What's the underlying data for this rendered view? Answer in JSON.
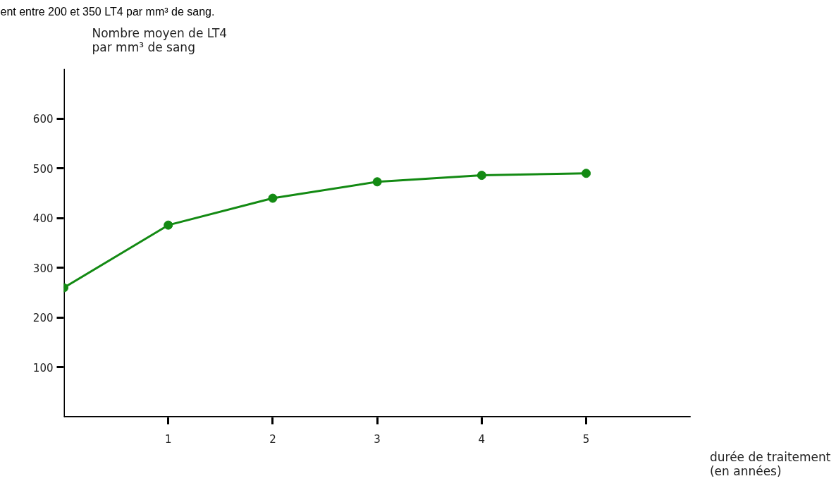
{
  "chart_data": {
    "type": "line",
    "xlabel": "durée de traitement\n(en années)",
    "ylabel": "Nombre moyen de LT4\npar mm³ de sang",
    "annotations": [
      "ent entre 200 et 350 LT4 par mm³ de sang."
    ],
    "x": [
      0,
      1,
      2,
      3,
      4,
      5
    ],
    "series": [
      {
        "color": "#138a13",
        "values": [
          260,
          386,
          440,
          473,
          486,
          490
        ]
      }
    ],
    "xlim": [
      0,
      6
    ],
    "ylim": [
      0,
      700
    ],
    "xticks": [
      1,
      2,
      3,
      4,
      5
    ],
    "yticks": [
      100,
      200,
      300,
      400,
      500,
      600
    ],
    "grid": false,
    "marker": "circle",
    "line_style": "solid"
  }
}
